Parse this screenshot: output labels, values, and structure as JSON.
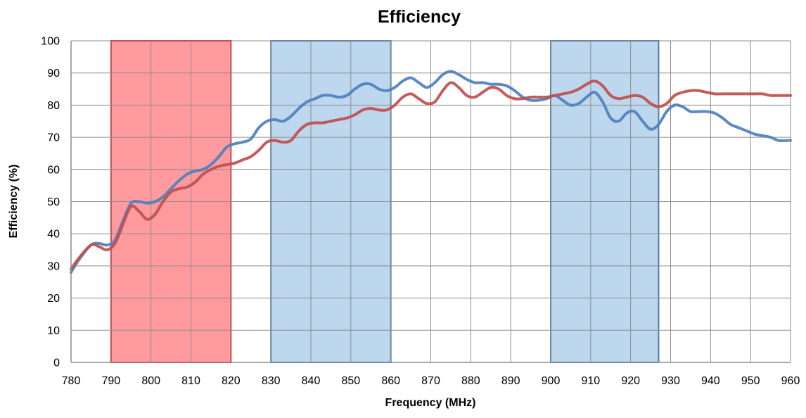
{
  "chart_data": {
    "type": "line",
    "title": "Efficiency",
    "xlabel": "Frequency (MHz)",
    "ylabel": "Efficiency (%)",
    "xlim": [
      780,
      960
    ],
    "ylim": [
      0,
      100
    ],
    "x_ticks": [
      780,
      790,
      800,
      810,
      820,
      830,
      840,
      850,
      860,
      870,
      880,
      890,
      900,
      910,
      920,
      930,
      940,
      950,
      960
    ],
    "y_ticks": [
      0,
      10,
      20,
      30,
      40,
      50,
      60,
      70,
      80,
      90,
      100
    ],
    "grid": true,
    "legend": "none",
    "highlight_bands": [
      {
        "from": 790,
        "to": 820,
        "fill": "#ff9a9e",
        "stroke": "#ee1c24"
      },
      {
        "from": 830,
        "to": 860,
        "fill": "#bdd7ee",
        "stroke": "#4f7eab"
      },
      {
        "from": 900,
        "to": 927,
        "fill": "#bdd7ee",
        "stroke": "#4f7eab"
      }
    ],
    "series": [
      {
        "color": "#4f81bd",
        "x": [
          780,
          782,
          785,
          787,
          789,
          791,
          793,
          795,
          797,
          799,
          801,
          803,
          805,
          807,
          809,
          811,
          813,
          815,
          817,
          819,
          821,
          823,
          825,
          827,
          829,
          831,
          833,
          835,
          837,
          839,
          841,
          843,
          845,
          847,
          849,
          851,
          853,
          855,
          857,
          859,
          861,
          863,
          865,
          867,
          869,
          871,
          873,
          875,
          877,
          879,
          881,
          883,
          885,
          887,
          889,
          891,
          893,
          895,
          897,
          899,
          901,
          903,
          905,
          907,
          909,
          911,
          913,
          915,
          917,
          919,
          921,
          923,
          925,
          927,
          929,
          931,
          933,
          935,
          937,
          939,
          941,
          943,
          945,
          947,
          949,
          951,
          953,
          955,
          957,
          959,
          960
        ],
        "y": [
          28,
          32,
          36.5,
          37,
          36.5,
          38,
          44,
          49.5,
          50,
          49.5,
          50,
          51.5,
          54,
          56.5,
          58.5,
          59.5,
          60,
          61.5,
          64,
          67,
          68,
          68.5,
          69.5,
          73,
          75,
          75.5,
          75,
          76.5,
          79,
          81,
          82,
          83,
          83,
          82.5,
          83,
          85,
          86.5,
          86.5,
          85,
          84.5,
          85.5,
          87.5,
          88.5,
          87,
          85.5,
          87,
          89.5,
          90.5,
          89.5,
          88,
          87,
          87,
          86.5,
          86.5,
          86,
          84.5,
          82.5,
          81.5,
          81.5,
          82,
          83,
          81.5,
          80,
          80.5,
          82.5,
          84,
          81,
          76,
          75,
          77.5,
          78,
          75,
          72.5,
          74,
          78,
          80,
          79.5,
          78,
          78,
          78,
          77.5,
          76,
          74,
          73,
          72,
          71,
          70.5,
          70,
          69,
          69,
          69
        ]
      },
      {
        "color": "#c0504d",
        "x": [
          780,
          782,
          785,
          787,
          789,
          791,
          793,
          795,
          797,
          799,
          801,
          803,
          805,
          807,
          809,
          811,
          813,
          815,
          817,
          819,
          821,
          823,
          825,
          827,
          829,
          831,
          833,
          835,
          837,
          839,
          841,
          843,
          845,
          847,
          849,
          851,
          853,
          855,
          857,
          859,
          861,
          863,
          865,
          867,
          869,
          871,
          873,
          875,
          877,
          879,
          881,
          883,
          885,
          887,
          889,
          891,
          893,
          895,
          897,
          899,
          901,
          903,
          905,
          907,
          909,
          911,
          913,
          915,
          917,
          919,
          921,
          923,
          925,
          927,
          929,
          931,
          933,
          935,
          937,
          939,
          941,
          943,
          945,
          947,
          949,
          951,
          953,
          955,
          957,
          959,
          960
        ],
        "y": [
          29,
          32.5,
          36.5,
          36,
          35,
          37,
          43,
          48.5,
          47,
          44.5,
          46,
          50,
          53,
          54,
          54.5,
          56,
          58.5,
          60,
          61,
          61.5,
          62,
          63,
          64,
          66,
          68.5,
          69,
          68.5,
          69,
          72,
          74,
          74.5,
          74.5,
          75,
          75.5,
          76,
          77,
          78.5,
          79,
          78.5,
          78.5,
          80,
          82.5,
          83.5,
          82,
          80.5,
          81,
          84.5,
          87,
          85.5,
          83,
          82.5,
          84,
          85.5,
          85,
          83,
          82,
          82,
          82.5,
          82.5,
          82.5,
          83,
          83.5,
          84,
          85,
          86.5,
          87.5,
          86,
          83,
          82,
          82.5,
          83,
          82.5,
          80.5,
          79.5,
          80.5,
          83,
          84,
          84.5,
          84.5,
          84,
          83.5,
          83.5,
          83.5,
          83.5,
          83.5,
          83.5,
          83.5,
          83,
          83,
          83,
          83
        ]
      }
    ]
  }
}
